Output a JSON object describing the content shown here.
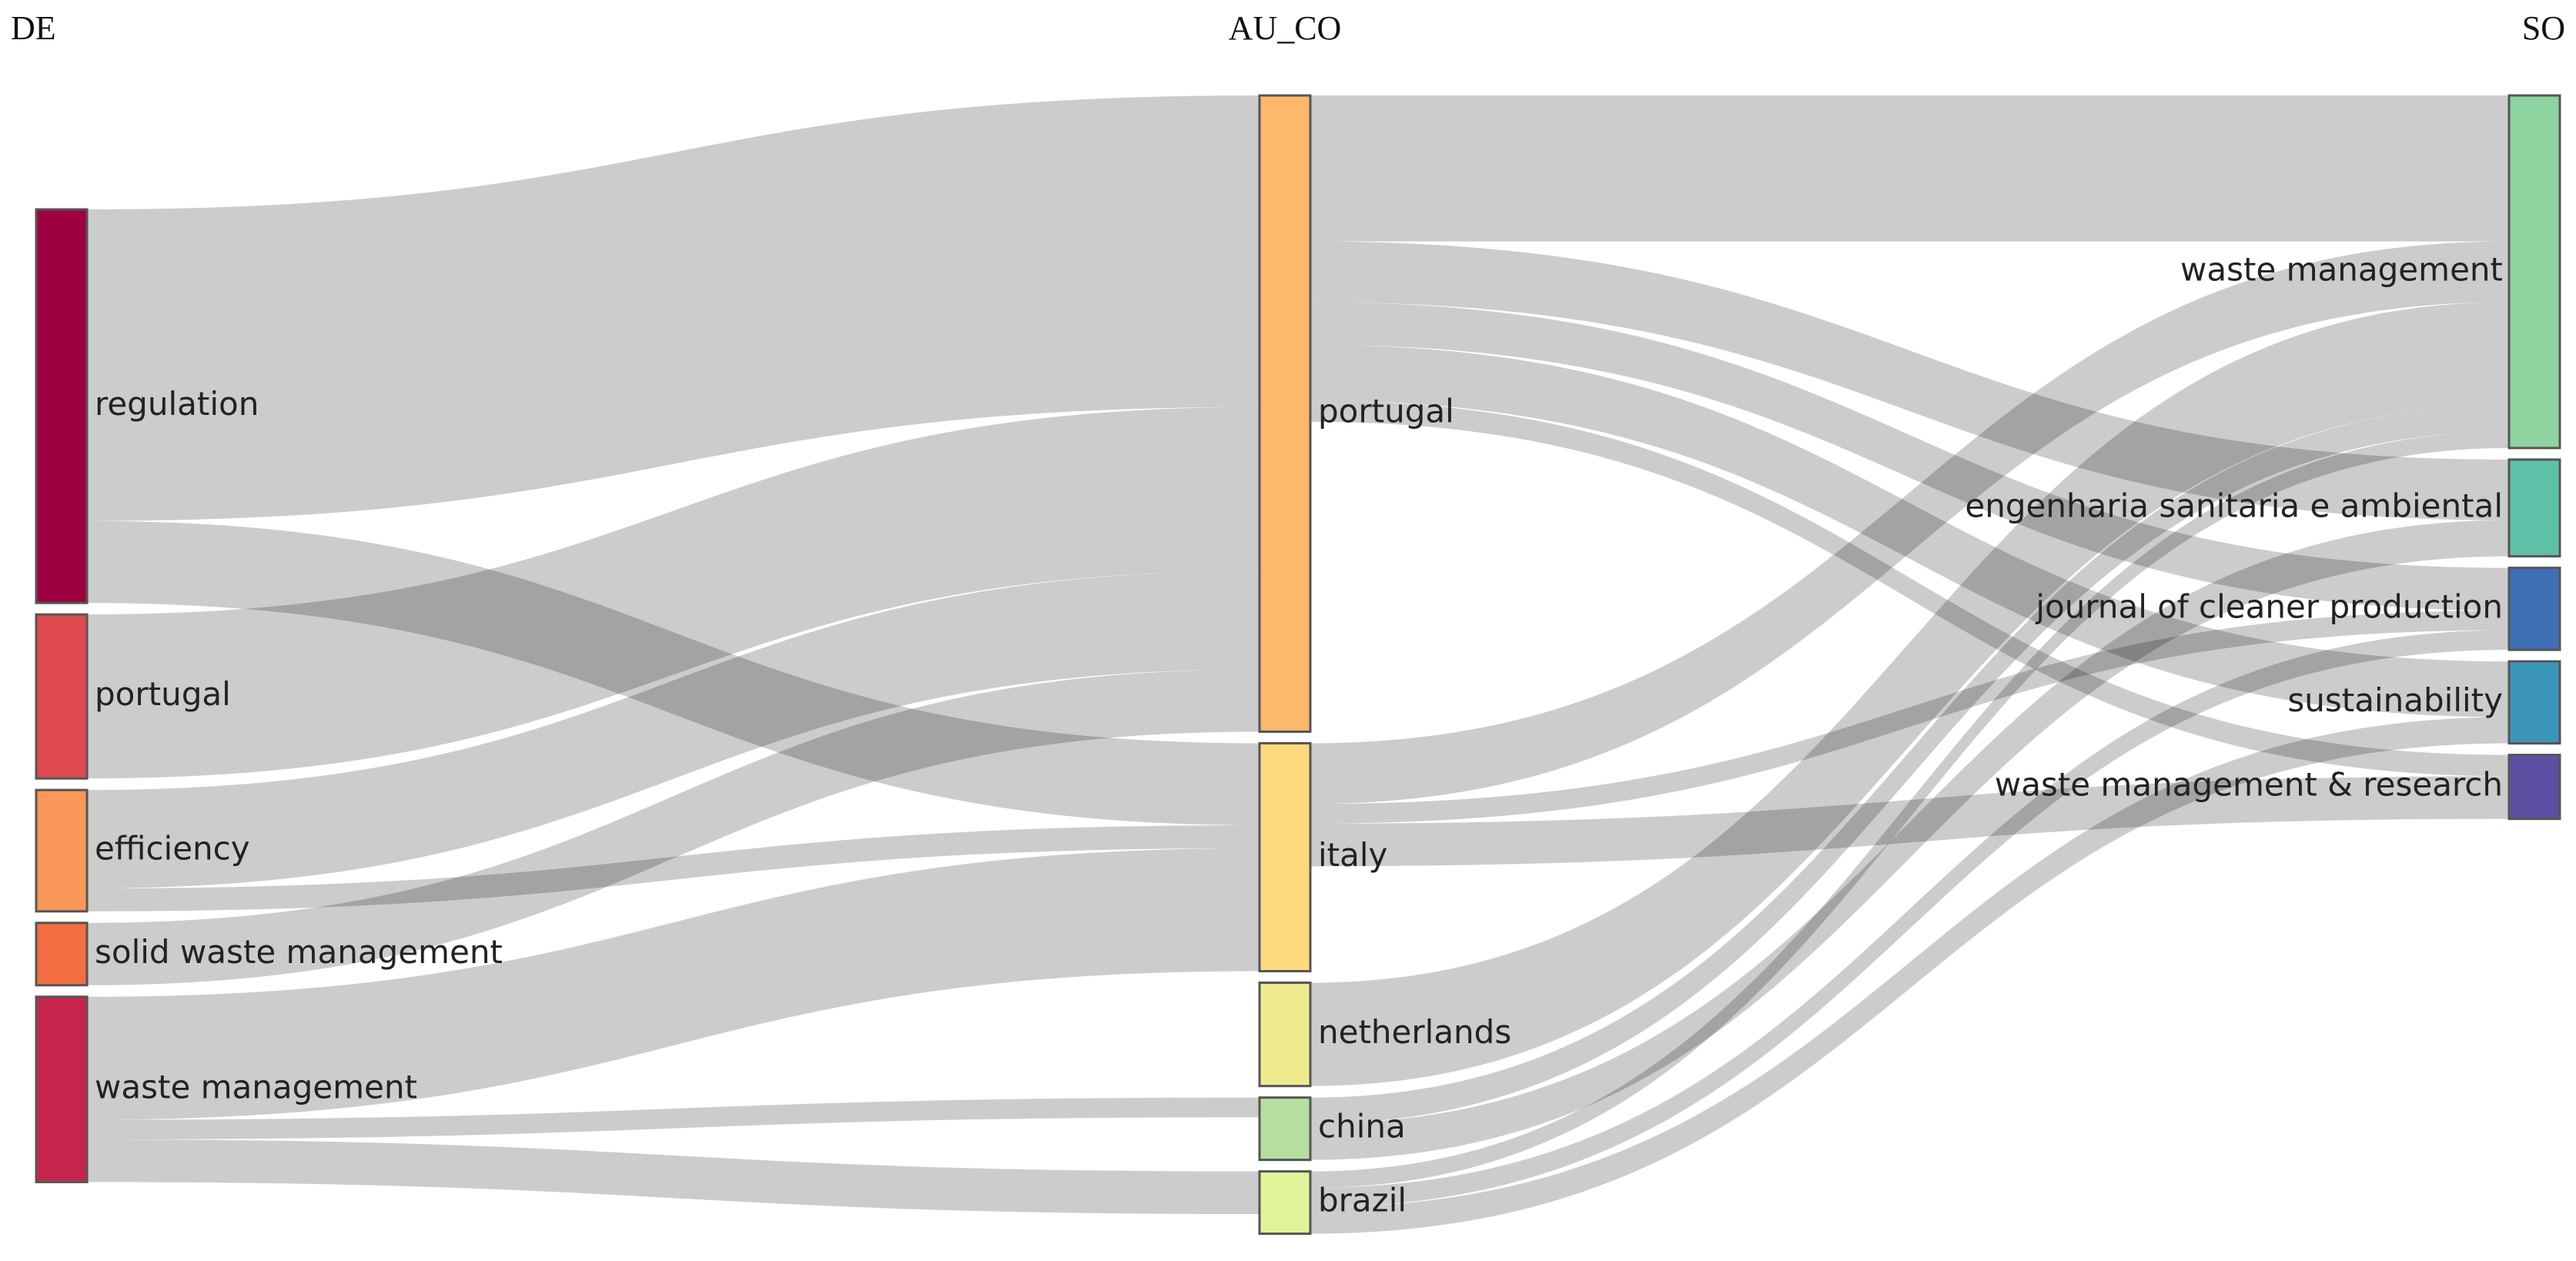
{
  "chart_data": {
    "type": "sankey",
    "columns": [
      {
        "title": "DE",
        "nodes": [
          {
            "name": "regulation",
            "color": "#9e0142",
            "links": [
              {
                "target": 0,
                "value": 190
              },
              {
                "target": 1,
                "value": 50
              }
            ]
          },
          {
            "name": "portugal",
            "color": "#de4a50",
            "links": [
              {
                "target": 0,
                "value": 100
              }
            ]
          },
          {
            "name": "efficiency",
            "color": "#f99858",
            "links": [
              {
                "target": 0,
                "value": 60
              },
              {
                "target": 1,
                "value": 14
              }
            ]
          },
          {
            "name": "solid waste management",
            "color": "#f46d43",
            "links": [
              {
                "target": 0,
                "value": 38
              }
            ]
          },
          {
            "name": "waste management",
            "color": "#c7244b",
            "links": [
              {
                "target": 1,
                "value": 75
              },
              {
                "target": 3,
                "value": 12
              },
              {
                "target": 4,
                "value": 26
              }
            ]
          }
        ]
      },
      {
        "title": "AU_CO",
        "nodes": [
          {
            "name": "portugal",
            "color": "#fdb86a",
            "links": [
              {
                "target": 0,
                "value": 89
              },
              {
                "target": 1,
                "value": 37
              },
              {
                "target": 2,
                "value": 26
              },
              {
                "target": 3,
                "value": 34
              },
              {
                "target": 4,
                "value": 13
              }
            ]
          },
          {
            "name": "italy",
            "color": "#fdda7d",
            "links": [
              {
                "target": 0,
                "value": 37
              },
              {
                "target": 2,
                "value": 12
              },
              {
                "target": 4,
                "value": 26
              }
            ]
          },
          {
            "name": "netherlands",
            "color": "#eeeb8f",
            "links": [
              {
                "target": 0,
                "value": 63
              }
            ]
          },
          {
            "name": "china",
            "color": "#b5dfa0",
            "links": [
              {
                "target": 0,
                "value": 16
              },
              {
                "target": 1,
                "value": 22
              }
            ]
          },
          {
            "name": "brazil",
            "color": "#e0f49a",
            "links": [
              {
                "target": 0,
                "value": 10
              },
              {
                "target": 2,
                "value": 12
              },
              {
                "target": 3,
                "value": 16
              }
            ]
          }
        ]
      },
      {
        "title": "SO",
        "nodes": [
          {
            "name": "waste management",
            "color": "#8dd3a0",
            "links": []
          },
          {
            "name": "engenharia sanitaria e ambiental",
            "color": "#5fc0a8",
            "links": []
          },
          {
            "name": "journal of cleaner production",
            "color": "#3e6fb5",
            "links": []
          },
          {
            "name": "sustainability",
            "color": "#3b95b8",
            "links": []
          },
          {
            "name": "waste management & research",
            "color": "#5e4fa2",
            "links": []
          }
        ]
      }
    ]
  }
}
